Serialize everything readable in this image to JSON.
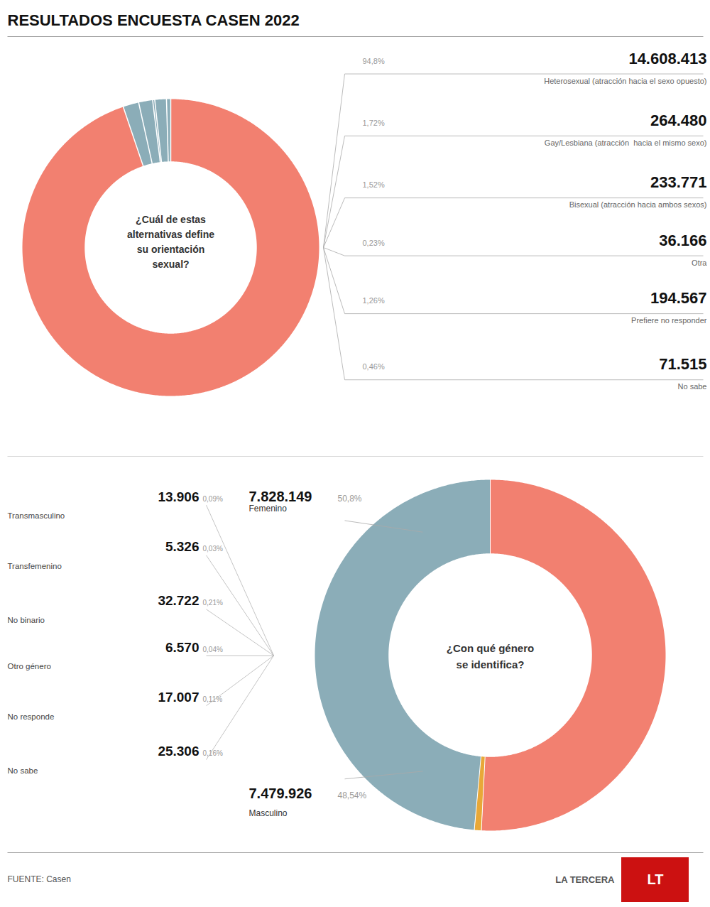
{
  "chart_data": [
    {
      "type": "pie",
      "title": "RESULTADOS ENCUESTA CASEN 2022",
      "annotations": [
        {
          "text": "¿Cuál de estas\nalternativas define\nsu orientación\nsexual?"
        }
      ],
      "categories": [
        "Heterosexual (atracción hacia el sexo opuesto)",
        "Gay/Lesbiana (atracción  hacia el mismo sexo)",
        "Bisexual (atracción hacia ambos sexos)",
        "Otra",
        "Prefiere no responder",
        "No sabe"
      ],
      "values": [
        94.8,
        1.72,
        1.52,
        0.23,
        1.26,
        0.46
      ],
      "value_labels": [
        "94,8%",
        "1,72%",
        "1,52%",
        "0,23%",
        "1,26%",
        "0,46%"
      ],
      "counts": [
        {
          "value": 14608413,
          "label": "14.608.413"
        },
        {
          "value": 264480,
          "label": "264.480"
        },
        {
          "value": 233771,
          "label": "233.771"
        },
        {
          "value": 36166,
          "label": "36.166"
        },
        {
          "value": 194567,
          "label": "194.567"
        },
        {
          "value": 71515,
          "label": "71.515"
        }
      ],
      "colors": [
        "#F28070",
        "#8BADB8",
        "#8BADB8",
        "#8BADB8",
        "#8BADB8",
        "#8BADB8"
      ],
      "data_labels": true
    },
    {
      "type": "pie",
      "annotations": [
        {
          "text": "¿Con qué género\nse identifica?"
        },
        {
          "text": "FUENTE: Casen"
        },
        {
          "text": "LA TERCERA"
        },
        {
          "text": "LT",
          "color": "#cc1111"
        }
      ],
      "categories": [
        "Femenino",
        null,
        "Masculino"
      ],
      "values": [
        50.8,
        0.64,
        48.54
      ],
      "value_labels": [
        "50,8%",
        null,
        "48,54%"
      ],
      "counts": [
        {
          "value": 7828149,
          "label": "7.828.149"
        },
        null,
        {
          "value": 7479926,
          "label": "7.479.926"
        }
      ],
      "colors": [
        "#F28070",
        "#E8A838",
        "#8BADB8"
      ],
      "data_labels": true,
      "breakdown": {
        "categories": [
          "Transmasculino",
          "Transfemenino",
          "No binario",
          "Otro género",
          "No responde",
          "No sabe"
        ],
        "values": [
          0.09,
          0.03,
          0.21,
          0.04,
          0.11,
          0.16
        ],
        "value_labels": [
          "0,09%",
          "0,03%",
          "0,21%",
          "0,04%",
          "0,11%",
          "0,16%"
        ],
        "counts": [
          {
            "value": 13906,
            "label": "13.906"
          },
          {
            "value": 5326,
            "label": "5.326"
          },
          {
            "value": 32722,
            "label": "32.722"
          },
          {
            "value": 6570,
            "label": "6.570"
          },
          {
            "value": 17007,
            "label": "17.007"
          },
          {
            "value": 25306,
            "label": "25.306"
          }
        ]
      }
    }
  ]
}
